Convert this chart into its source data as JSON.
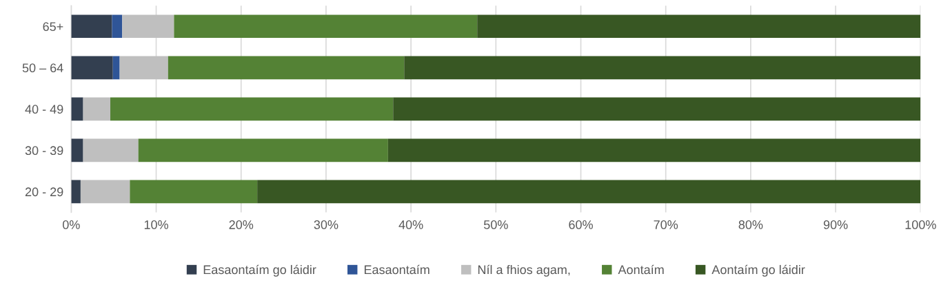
{
  "chart_data": {
    "type": "bar",
    "orientation": "horizontal",
    "stacked": true,
    "categories": [
      "65+",
      "50 – 64",
      "40 - 49",
      "30 - 39",
      "20 - 29"
    ],
    "series": [
      {
        "name": "Easaontaím go láidir",
        "color": "#333f50",
        "values": [
          4.8,
          4.9,
          1.4,
          1.4,
          1.1
        ]
      },
      {
        "name": "Easaontaím",
        "color": "#2f5597",
        "values": [
          1.2,
          0.8,
          0,
          0,
          0
        ]
      },
      {
        "name": "Níl a fhios agam,",
        "color": "#bfbfbf",
        "values": [
          6.1,
          5.7,
          3.2,
          6.5,
          5.8
        ]
      },
      {
        "name": "Aontaím",
        "color": "#548235",
        "values": [
          35.7,
          27.8,
          33.3,
          29.4,
          15.0
        ]
      },
      {
        "name": "Aontaím go láidir",
        "color": "#385723",
        "values": [
          52.2,
          60.8,
          62.1,
          62.7,
          78.1
        ]
      }
    ],
    "xlim": [
      0,
      100
    ],
    "xticks": [
      {
        "value": 0,
        "label": "0%"
      },
      {
        "value": 10,
        "label": "10%"
      },
      {
        "value": 20,
        "label": "20%"
      },
      {
        "value": 30,
        "label": "30%"
      },
      {
        "value": 40,
        "label": "40%"
      },
      {
        "value": 50,
        "label": "50%"
      },
      {
        "value": 60,
        "label": "60%"
      },
      {
        "value": 70,
        "label": "70%"
      },
      {
        "value": 80,
        "label": "80%"
      },
      {
        "value": 90,
        "label": "90%"
      },
      {
        "value": 100,
        "label": "100%"
      }
    ],
    "grid": "x",
    "legend": "bottom"
  }
}
